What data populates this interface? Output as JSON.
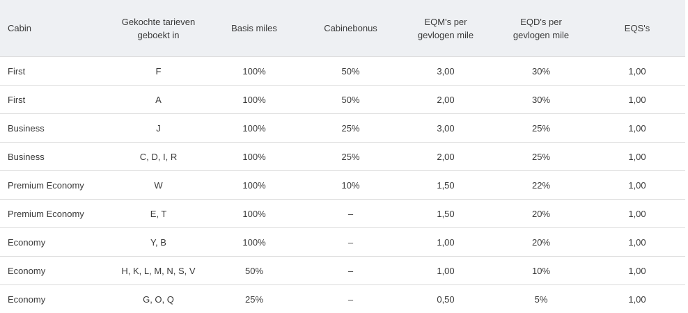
{
  "table": {
    "header": [
      "Cabin",
      "Gekochte tarieven geboekt in",
      "Basis miles",
      "Cabinebonus",
      "EQM's per gevlogen mile",
      "EQD's per gevlogen mile",
      "EQS's"
    ],
    "rows": [
      [
        "First",
        "F",
        "100%",
        "50%",
        "3,00",
        "30%",
        "1,00"
      ],
      [
        "First",
        "A",
        "100%",
        "50%",
        "2,00",
        "30%",
        "1,00"
      ],
      [
        "Business",
        "J",
        "100%",
        "25%",
        "3,00",
        "25%",
        "1,00"
      ],
      [
        "Business",
        "C, D, I, R",
        "100%",
        "25%",
        "2,00",
        "25%",
        "1,00"
      ],
      [
        "Premium Economy",
        "W",
        "100%",
        "10%",
        "1,50",
        "22%",
        "1,00"
      ],
      [
        "Premium Economy",
        "E, T",
        "100%",
        "–",
        "1,50",
        "20%",
        "1,00"
      ],
      [
        "Economy",
        "Y, B",
        "100%",
        "–",
        "1,00",
        "20%",
        "1,00"
      ],
      [
        "Economy",
        "H, K, L, M, N, S, V",
        "50%",
        "–",
        "1,00",
        "10%",
        "1,00"
      ],
      [
        "Economy",
        "G, O, Q",
        "25%",
        "–",
        "0,50",
        "5%",
        "1,00"
      ]
    ]
  }
}
